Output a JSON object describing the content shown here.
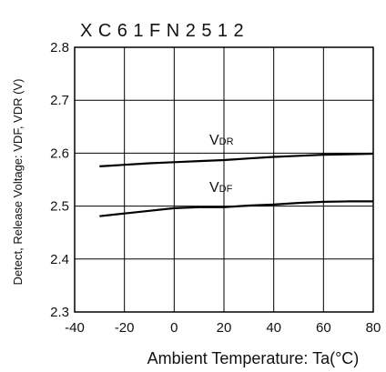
{
  "chart_data": {
    "type": "line",
    "title": "XC61FN2512",
    "xlabel": "Ambient Temperature: Ta(°C)",
    "ylabel": "Detect, Release Voltage: VDF, VDR (V)",
    "xlim": [
      -40,
      80
    ],
    "ylim": [
      2.3,
      2.8
    ],
    "x_ticks": [
      "-40",
      "-20",
      "0",
      "20",
      "40",
      "60",
      "80"
    ],
    "y_ticks": [
      "2.3",
      "2.4",
      "2.5",
      "2.6",
      "2.7",
      "2.8"
    ],
    "grid": true,
    "series": [
      {
        "name": "VDR",
        "label_main": "V",
        "label_sub": "DR",
        "x": [
          -30,
          -20,
          -10,
          0,
          10,
          20,
          30,
          40,
          50,
          60,
          70,
          80
        ],
        "y": [
          2.575,
          2.578,
          2.581,
          2.583,
          2.585,
          2.587,
          2.59,
          2.593,
          2.595,
          2.597,
          2.598,
          2.599
        ]
      },
      {
        "name": "VDF",
        "label_main": "V",
        "label_sub": "DF",
        "x": [
          -30,
          -20,
          -10,
          0,
          10,
          20,
          30,
          40,
          50,
          60,
          70,
          80
        ],
        "y": [
          2.481,
          2.486,
          2.491,
          2.496,
          2.498,
          2.498,
          2.501,
          2.503,
          2.506,
          2.508,
          2.509,
          2.509
        ]
      }
    ]
  }
}
